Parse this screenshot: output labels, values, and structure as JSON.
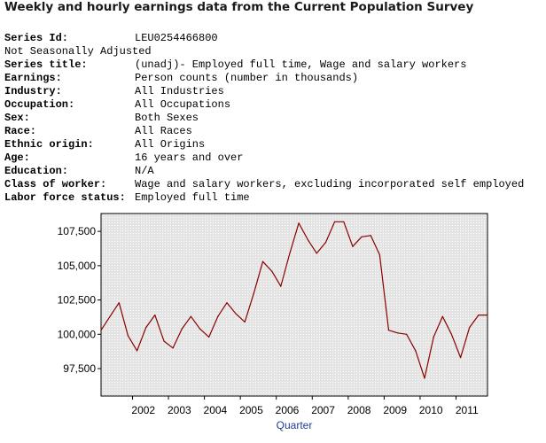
{
  "title": "Weekly and hourly earnings data from the Current Population Survey",
  "metadata": [
    {
      "label": "Series Id:",
      "value": "LEU0254466800"
    },
    {
      "text": "Not Seasonally Adjusted"
    },
    {
      "label": "Series title:",
      "value": "(unadj)- Employed full time, Wage and salary workers"
    },
    {
      "label": "Earnings:",
      "value": "Person counts (number in thousands)"
    },
    {
      "label": "Industry:",
      "value": "All Industries"
    },
    {
      "label": "Occupation:",
      "value": "All Occupations"
    },
    {
      "label": "Sex:",
      "value": "Both Sexes"
    },
    {
      "label": "Race:",
      "value": "All Races"
    },
    {
      "label": "Ethnic origin:",
      "value": "All Origins"
    },
    {
      "label": "Age:",
      "value": "16 years and over"
    },
    {
      "label": "Education:",
      "value": "N/A"
    },
    {
      "label": "Class of worker:",
      "value": "Wage and salary workers, excluding incorporated self employed"
    },
    {
      "label": "Labor force status:",
      "value": "Employed full time"
    }
  ],
  "colors": {
    "line": "#8b0000",
    "plot_background": "#ececec",
    "grid": "#ffffff",
    "xlabel": "#1f3f8f"
  },
  "chart_data": {
    "type": "line",
    "title": "",
    "xlabel": "Quarter",
    "ylabel": "",
    "grid": true,
    "x_tick_labels": [
      "2002",
      "2003",
      "2004",
      "2005",
      "2006",
      "2007",
      "2008",
      "2009",
      "2010",
      "2011"
    ],
    "y_tick_labels": [
      "97,500",
      "100,000",
      "102,500",
      "105,000",
      "107,500"
    ],
    "y_ticks": [
      97500,
      100000,
      102500,
      105000,
      107500
    ],
    "ylim": [
      95500,
      108800
    ],
    "x_start": "2001-Q1",
    "x_end": "2011-Q4",
    "series": [
      {
        "x": [
          "2001-Q1",
          "2001-Q2",
          "2001-Q3",
          "2001-Q4",
          "2002-Q1",
          "2002-Q2",
          "2002-Q3",
          "2002-Q4",
          "2003-Q1",
          "2003-Q2",
          "2003-Q3",
          "2003-Q4",
          "2004-Q1",
          "2004-Q2",
          "2004-Q3",
          "2004-Q4",
          "2005-Q1",
          "2005-Q2",
          "2005-Q3",
          "2005-Q4",
          "2006-Q1",
          "2006-Q2",
          "2006-Q3",
          "2006-Q4",
          "2007-Q1",
          "2007-Q2",
          "2007-Q3",
          "2007-Q4",
          "2008-Q1",
          "2008-Q2",
          "2008-Q3",
          "2008-Q4",
          "2009-Q1",
          "2009-Q2",
          "2009-Q3",
          "2009-Q4",
          "2010-Q1",
          "2010-Q2",
          "2010-Q3",
          "2010-Q4",
          "2011-Q1",
          "2011-Q2",
          "2011-Q3",
          "2011-Q4"
        ],
        "values": [
          100300,
          101300,
          102300,
          99900,
          98800,
          100500,
          101400,
          99500,
          99000,
          100400,
          101300,
          100400,
          99800,
          101300,
          102300,
          101500,
          100900,
          103000,
          105300,
          104600,
          103500,
          105900,
          108100,
          106900,
          105900,
          106700,
          108200,
          108200,
          106400,
          107100,
          107200,
          105800,
          100300,
          100100,
          100000,
          98800,
          96800,
          99800,
          101300,
          100000,
          98300,
          100500,
          101400,
          101400
        ]
      }
    ]
  }
}
